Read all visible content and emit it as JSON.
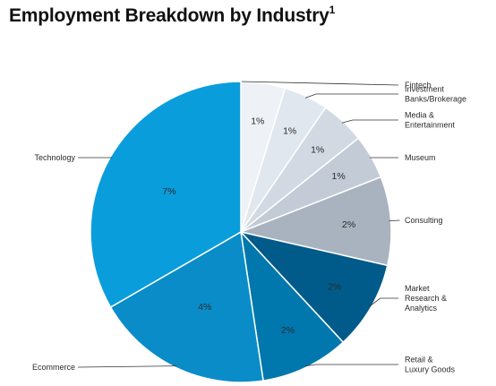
{
  "title": "Employment Breakdown by Industry",
  "title_footnote": "1",
  "chart_data": {
    "type": "pie",
    "title": "Employment Breakdown by Industry",
    "legend": "none",
    "slices": [
      {
        "name": "Fintech",
        "label": "1%",
        "value": 1,
        "color": "#eef2f6",
        "callout": [
          "Fintech"
        ]
      },
      {
        "name": "Investment Banks/Brokerage",
        "label": "1%",
        "value": 1,
        "color": "#e1e7ee",
        "callout": [
          "Investment",
          "Banks/Brokerage"
        ]
      },
      {
        "name": "Media & Entertainment",
        "label": "1%",
        "value": 1,
        "color": "#d2d9e2",
        "callout": [
          "Media &",
          "Entertainment"
        ]
      },
      {
        "name": "Museum",
        "label": "1%",
        "value": 1,
        "color": "#c2cbd6",
        "callout": [
          "Museum"
        ]
      },
      {
        "name": "Consulting",
        "label": "2%",
        "value": 2,
        "color": "#a9b3bf",
        "callout": [
          "Consulting"
        ]
      },
      {
        "name": "Market Research & Analytics",
        "label": "2%",
        "value": 2,
        "color": "#005b8a",
        "callout": [
          "Market",
          "Research &",
          "Analytics"
        ]
      },
      {
        "name": "Retail & Luxury Goods",
        "label": "2%",
        "value": 2,
        "color": "#0077ad",
        "callout": [
          "Retail &",
          "Luxury Goods"
        ]
      },
      {
        "name": "Ecommerce",
        "label": "4%",
        "value": 4,
        "color": "#0a8cc8",
        "callout": [
          "Ecommerce"
        ]
      },
      {
        "name": "Technology",
        "label": "7%",
        "value": 7,
        "color": "#0a9ddc",
        "callout": [
          "Technology"
        ]
      }
    ]
  }
}
